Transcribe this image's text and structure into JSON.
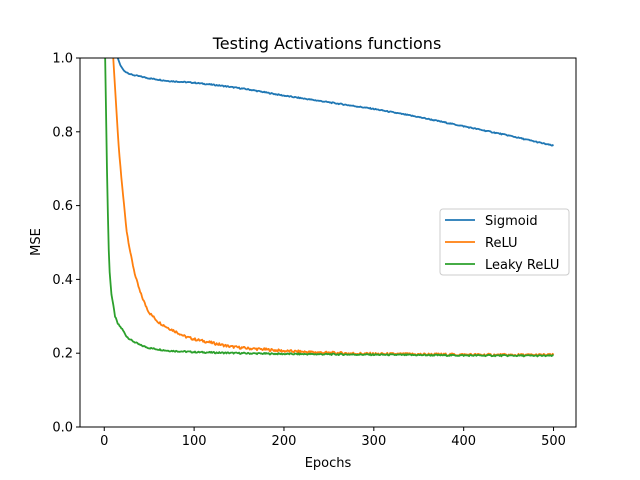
{
  "chart_data": {
    "type": "line",
    "title": "Testing Activations functions",
    "xlabel": "Epochs",
    "ylabel": "MSE",
    "xlim": [
      -27,
      525
    ],
    "ylim": [
      0.0,
      1.0
    ],
    "x_ticks": [
      0,
      100,
      200,
      300,
      400,
      500
    ],
    "x_tick_labels": [
      "0",
      "100",
      "200",
      "300",
      "400",
      "500"
    ],
    "y_ticks": [
      0.0,
      0.2,
      0.4,
      0.6,
      0.8,
      1.0
    ],
    "y_tick_labels": [
      "0.0",
      "0.2",
      "0.4",
      "0.6",
      "0.8",
      "1.0"
    ],
    "grid": false,
    "legend_position": "center-right",
    "series": [
      {
        "name": "Sigmoid",
        "color": "#1f77b4",
        "points": [
          [
            15,
            1.0
          ],
          [
            18,
            0.98
          ],
          [
            22,
            0.965
          ],
          [
            30,
            0.955
          ],
          [
            50,
            0.945
          ],
          [
            70,
            0.938
          ],
          [
            100,
            0.933
          ],
          [
            130,
            0.925
          ],
          [
            160,
            0.915
          ],
          [
            200,
            0.898
          ],
          [
            250,
            0.88
          ],
          [
            300,
            0.862
          ],
          [
            350,
            0.84
          ],
          [
            400,
            0.815
          ],
          [
            450,
            0.79
          ],
          [
            500,
            0.762
          ]
        ]
      },
      {
        "name": "ReLU",
        "color": "#ff7f0e",
        "points": [
          [
            10,
            1.0
          ],
          [
            13,
            0.88
          ],
          [
            16,
            0.76
          ],
          [
            20,
            0.65
          ],
          [
            25,
            0.53
          ],
          [
            30,
            0.46
          ],
          [
            35,
            0.405
          ],
          [
            40,
            0.365
          ],
          [
            45,
            0.335
          ],
          [
            50,
            0.31
          ],
          [
            60,
            0.285
          ],
          [
            70,
            0.27
          ],
          [
            80,
            0.258
          ],
          [
            90,
            0.245
          ],
          [
            100,
            0.238
          ],
          [
            120,
            0.228
          ],
          [
            140,
            0.218
          ],
          [
            160,
            0.213
          ],
          [
            180,
            0.21
          ],
          [
            200,
            0.206
          ],
          [
            250,
            0.201
          ],
          [
            300,
            0.198
          ],
          [
            350,
            0.197
          ],
          [
            400,
            0.196
          ],
          [
            450,
            0.195
          ],
          [
            500,
            0.195
          ]
        ]
      },
      {
        "name": "Leaky ReLU",
        "color": "#2ca02c",
        "points": [
          [
            1,
            1.0
          ],
          [
            2,
            0.85
          ],
          [
            3,
            0.7
          ],
          [
            4,
            0.58
          ],
          [
            5,
            0.48
          ],
          [
            6,
            0.42
          ],
          [
            8,
            0.36
          ],
          [
            10,
            0.33
          ],
          [
            12,
            0.3
          ],
          [
            15,
            0.28
          ],
          [
            20,
            0.265
          ],
          [
            25,
            0.245
          ],
          [
            30,
            0.235
          ],
          [
            40,
            0.222
          ],
          [
            50,
            0.214
          ],
          [
            70,
            0.207
          ],
          [
            100,
            0.203
          ],
          [
            150,
            0.2
          ],
          [
            200,
            0.198
          ],
          [
            300,
            0.196
          ],
          [
            400,
            0.194
          ],
          [
            500,
            0.193
          ]
        ]
      }
    ]
  }
}
